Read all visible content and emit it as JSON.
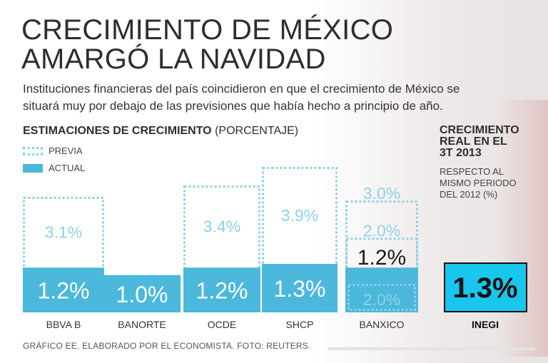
{
  "header": {
    "title_line1": "CRECIMIENTO DE MÉXICO",
    "title_line2": "AMARGÓ LA NAVIDAD",
    "subtitle_line1": "Instituciones financieras del país coincidieron en que el crecimiento de México se",
    "subtitle_line2": "situará muy por debajo de las previsiones que había hecho a principio de año."
  },
  "section": {
    "label": "ESTIMACIONES DE CRECIMIENTO",
    "unit": "(PORCENTAJE)"
  },
  "legend": {
    "previous": "PREVIA",
    "actual": "ACTUAL"
  },
  "real_growth": {
    "heading_line1": "CRECIMIENTO",
    "heading_line2": "REAL EN EL",
    "heading_line3": "3T 2013",
    "sub_line1": "RESPECTO AL",
    "sub_line2": "MISMO PERIODO",
    "sub_line3": "DEL 2012 (%)",
    "source": "INEGI",
    "value": 1.3,
    "value_label": "1.3%"
  },
  "colors": {
    "actual": "#4bb8dc",
    "previous": "#8ed2e8",
    "real": "#19c6ee",
    "label_light": "#ffffff",
    "label_prev": "#8ed2e8",
    "label_dark": "#1a1a1a"
  },
  "chart_data": {
    "type": "bar",
    "title": "ESTIMACIONES DE CRECIMIENTO (PORCENTAJE)",
    "categories": [
      "BBVA B",
      "BANORTE",
      "OCDE",
      "SHCP",
      "BANXICO"
    ],
    "series": [
      {
        "name": "PREVIA",
        "values": [
          3.1,
          null,
          3.4,
          3.9,
          3.0
        ],
        "labels": [
          "3.1%",
          "",
          "3.4%",
          "3.9%",
          "3.0%"
        ]
      },
      {
        "name": "ACTUAL",
        "values": [
          1.2,
          1.0,
          1.2,
          1.3,
          1.2
        ],
        "labels": [
          "1.2%",
          "1.0%",
          "1.2%",
          "1.3%",
          "1.2%"
        ]
      }
    ],
    "banxico_revisions": {
      "values": [
        3.0,
        2.0,
        1.2,
        2.0
      ],
      "labels": [
        "3.0%",
        "2.0%",
        "1.2%",
        "2.0%"
      ]
    },
    "ylim": [
      0,
      4.2
    ]
  },
  "footer": {
    "credit": "GRÁFICO EE. ELABORADO POR EL ECONOMISTA. FOTO: REUTERS."
  }
}
